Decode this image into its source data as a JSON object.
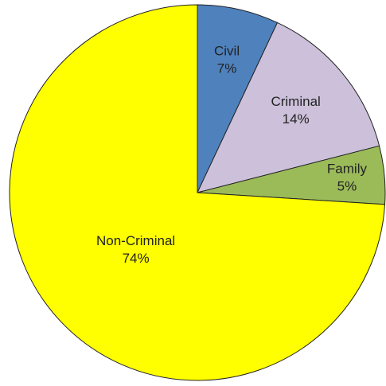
{
  "chart_data": {
    "type": "pie",
    "categories": [
      "Civil",
      "Criminal",
      "Family",
      "Non-Criminal"
    ],
    "values": [
      7,
      14,
      5,
      74
    ],
    "value_labels": [
      "7%",
      "14%",
      "5%",
      "74%"
    ],
    "colors": [
      "#4f81bd",
      "#ccc0da",
      "#9bbb59",
      "#ffff00"
    ]
  }
}
